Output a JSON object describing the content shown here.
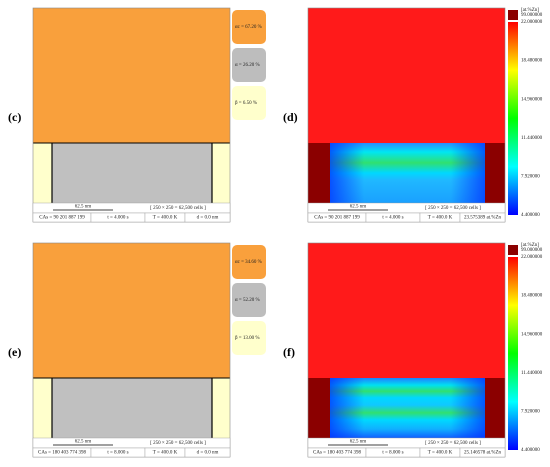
{
  "panels": [
    {
      "label": "(c)",
      "kind": "phase",
      "legend": [
        "αc = 67.20 %",
        "α = 26.20 %",
        "β = 6.50 %"
      ],
      "scale_bar": "62.5 nm",
      "cells": "[ 250 × 250 = 62,500 cells ]",
      "status": [
        "CAs = 90 201 887 199",
        "t = 4.000 s",
        "T = 400.0 K",
        "d = 0.0 nm"
      ]
    },
    {
      "label": "(d)",
      "kind": "concentration",
      "colorbar": {
        "header": "[at.%Zn]",
        "labels": [
          "99.000000",
          "22.000000",
          "18.480000",
          "14.960000",
          "11.440000",
          "7.920000",
          "4.400000"
        ]
      },
      "scale_bar": "62.5 nm",
      "cells": "[ 250 × 250 = 62,500 cells ]",
      "status": [
        "CAs = 90 201 887 199",
        "t = 4.000 s",
        "T = 400.0 K",
        "23.575389 at.%Zn"
      ]
    },
    {
      "label": "(e)",
      "kind": "phase",
      "legend": [
        "αc = 34.60 %",
        "α = 52.20 %",
        "β = 13.00 %"
      ],
      "scale_bar": "62.5 nm",
      "cells": "[ 250 × 250 = 62,500 cells ]",
      "status": [
        "CAs = 180 403 774 398",
        "t = 8.000 s",
        "T = 400.0 K",
        "d = 0.0 nm"
      ]
    },
    {
      "label": "(f)",
      "kind": "concentration2",
      "colorbar": {
        "header": "[at.%Zn]",
        "labels": [
          "99.000000",
          "22.000000",
          "18.480000",
          "14.960000",
          "11.440000",
          "7.920000",
          "4.400000"
        ]
      },
      "scale_bar": "62.5 nm",
      "cells": "[ 250 × 250 = 62,500 cells ]",
      "status": [
        "CAs = 180 403 774 398",
        "t = 8.000 s",
        "T = 400.0 K",
        "25.146578 at.%Zn"
      ]
    }
  ]
}
